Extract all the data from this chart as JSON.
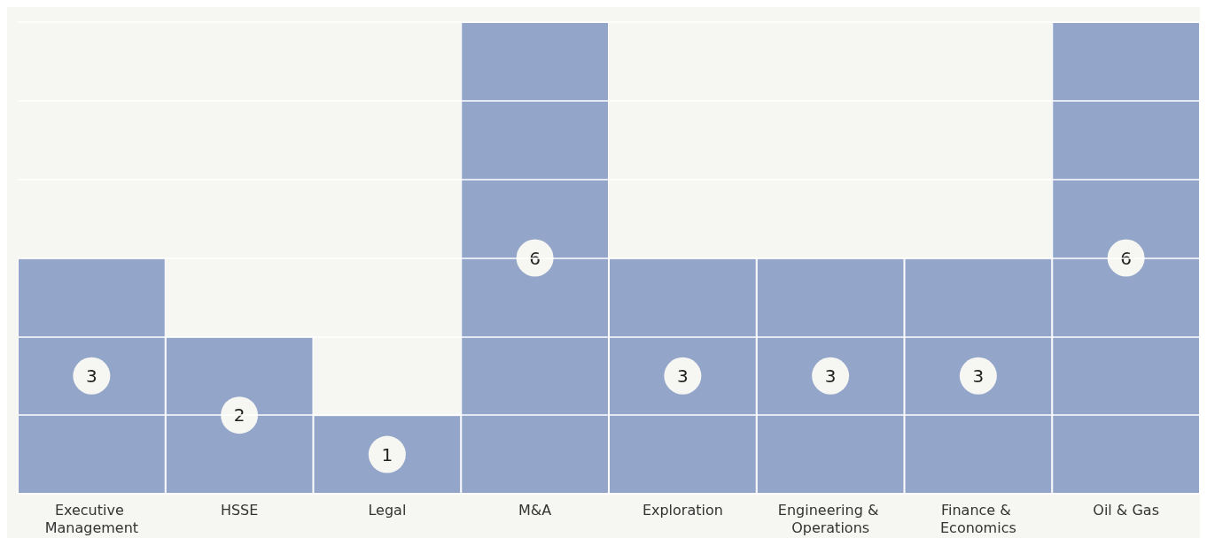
{
  "chart_data": {
    "type": "bar",
    "categories": [
      "Executive Management",
      "HSSE",
      "Legal",
      "M&A",
      "Exploration",
      "Engineering & Operations",
      "Finance & Economics",
      "Oil & Gas"
    ],
    "values": [
      3,
      2,
      1,
      6,
      3,
      3,
      3,
      6
    ],
    "color": "#93a5c9",
    "ylim": [
      0,
      6
    ],
    "yticks": [
      {
        "value": 0,
        "label": null
      },
      {
        "value": 1,
        "label": null
      },
      {
        "value": 2,
        "label": null
      },
      {
        "value": 3,
        "label": null
      },
      {
        "value": 4,
        "label": null
      },
      {
        "value": 5,
        "label": null
      },
      {
        "value": 6,
        "label": null
      }
    ],
    "tick_labels": "x",
    "grid": "y",
    "data_labels": true
  }
}
